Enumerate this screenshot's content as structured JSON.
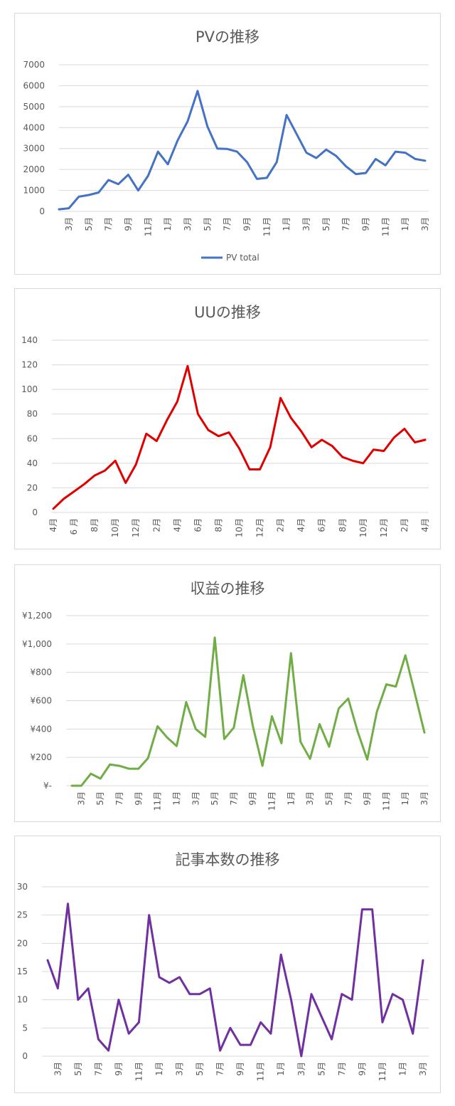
{
  "charts": [
    {
      "type": "line",
      "title": "PVの推移",
      "color": "#4472c4",
      "ylim": [
        0,
        7000
      ],
      "yticks": [
        "0",
        "1000",
        "2000",
        "3000",
        "4000",
        "5000",
        "6000",
        "7000"
      ],
      "yvals": [
        0,
        1000,
        2000,
        3000,
        4000,
        5000,
        6000,
        7000
      ],
      "xticks": [
        "3月",
        "5月",
        "7月",
        "9月",
        "11月",
        "1月",
        "3月",
        "5月",
        "7月",
        "9月",
        "11月",
        "1月",
        "3月",
        "5月",
        "7月",
        "9月",
        "11月",
        "1月",
        "3月"
      ],
      "legend": "PV total",
      "legend_position": "bottom",
      "series": [
        {
          "name": "PV total",
          "values": [
            100,
            150,
            700,
            780,
            900,
            1500,
            1300,
            1750,
            1000,
            1700,
            2850,
            2250,
            3400,
            4300,
            5750,
            4050,
            3000,
            2980,
            2850,
            2350,
            1550,
            1600,
            2350,
            4600,
            3700,
            2800,
            2550,
            2950,
            2650,
            2150,
            1780,
            1830,
            2500,
            2200,
            2850,
            2800,
            2500,
            2420
          ]
        }
      ],
      "grid": true
    },
    {
      "type": "line",
      "title": "UUの推移",
      "color": "#e00000",
      "ylim": [
        0,
        140
      ],
      "yticks": [
        "0",
        "20",
        "40",
        "60",
        "80",
        "100",
        "120",
        "140"
      ],
      "yvals": [
        0,
        20,
        40,
        60,
        80,
        100,
        120,
        140
      ],
      "xticks": [
        "4月",
        "6 月",
        "8月",
        "10月",
        "12月",
        "2月",
        "4月",
        "6月",
        "8月",
        "10月",
        "12月",
        "2月",
        "4月",
        "6月",
        "8月",
        "10月",
        "12月",
        "2月",
        "4月"
      ],
      "series": [
        {
          "values": [
            3,
            11,
            17,
            23,
            30,
            34,
            42,
            24,
            39,
            64,
            58,
            75,
            90,
            119,
            80,
            67,
            62,
            65,
            52,
            35,
            35,
            53,
            93,
            77,
            66,
            53,
            59,
            54,
            45,
            42,
            40,
            51,
            50,
            61,
            68,
            57,
            59
          ]
        }
      ],
      "grid": true
    },
    {
      "type": "line",
      "title": "収益の推移",
      "color": "#70ad47",
      "ylim": [
        0,
        1200
      ],
      "yticks": [
        "¥-",
        "¥200",
        "¥400",
        "¥600",
        "¥800",
        "¥1,000",
        "¥1,200"
      ],
      "yvals": [
        0,
        200,
        400,
        600,
        800,
        1000,
        1200
      ],
      "xticks": [
        "3月",
        "5月",
        "7月",
        "9月",
        "11月",
        "1月",
        "3月",
        "5月",
        "7月",
        "9月",
        "11月",
        "1月",
        "3月",
        "5月",
        "7月",
        "9月",
        "11月",
        "1月",
        "3月"
      ],
      "series": [
        {
          "values": [
            0,
            0,
            85,
            50,
            150,
            140,
            120,
            120,
            195,
            420,
            340,
            280,
            590,
            400,
            345,
            1045,
            330,
            410,
            780,
            420,
            140,
            490,
            300,
            935,
            310,
            190,
            435,
            275,
            545,
            615,
            380,
            185,
            520,
            715,
            700,
            920,
            650,
            375
          ]
        }
      ],
      "grid": true
    },
    {
      "type": "line",
      "title": "記事本数の推移",
      "color": "#7030a0",
      "ylim": [
        0,
        30
      ],
      "yticks": [
        "0",
        "5",
        "10",
        "15",
        "20",
        "25",
        "30"
      ],
      "yvals": [
        0,
        5,
        10,
        15,
        20,
        25,
        30
      ],
      "xticks": [
        "3月",
        "5月",
        "7月",
        "9月",
        "11月",
        "1月",
        "3月",
        "5月",
        "7月",
        "9月",
        "11月",
        "1月",
        "3月",
        "5月",
        "7月",
        "9月",
        "11月",
        "1月",
        "3月"
      ],
      "series": [
        {
          "values": [
            17,
            12,
            27,
            10,
            12,
            3,
            1,
            10,
            4,
            6,
            25,
            14,
            13,
            14,
            11,
            11,
            12,
            1,
            5,
            2,
            2,
            6,
            4,
            18,
            10,
            0,
            11,
            7,
            3,
            11,
            10,
            26,
            26,
            6,
            11,
            10,
            4,
            17
          ]
        }
      ],
      "grid": true
    }
  ]
}
